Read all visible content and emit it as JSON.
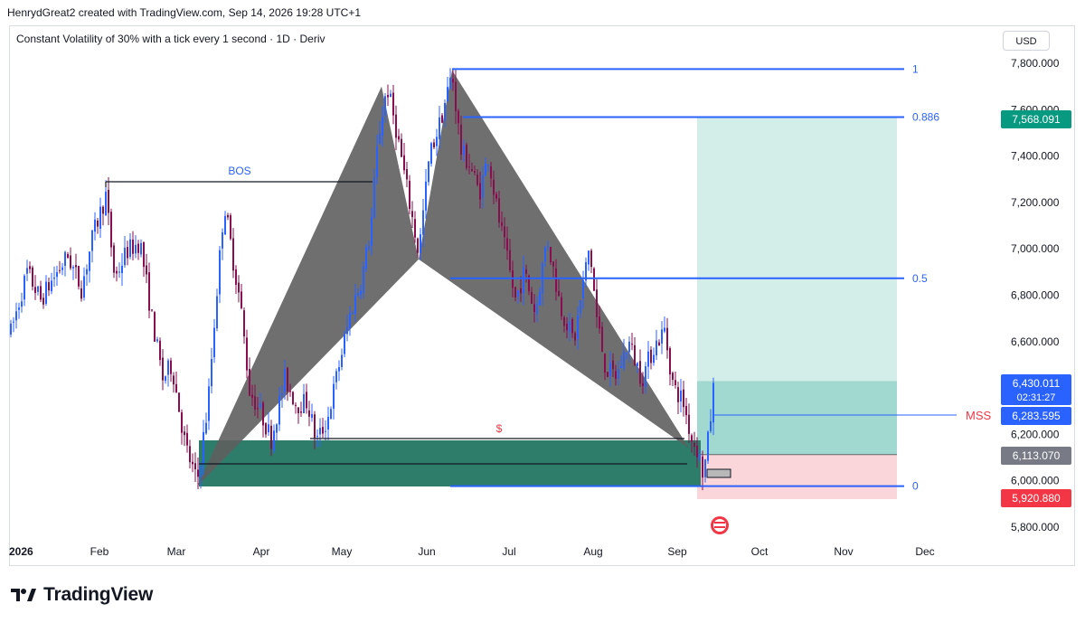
{
  "header": {
    "created_by": "HenrydGreat2 created with TradingView.com, Sep 14, 2026 19:28 UTC+1"
  },
  "symbol": {
    "title": "Constant Volatility of 30% with a tick every 1 second · 1D · Deriv"
  },
  "currency": "USD",
  "brand": {
    "name": "TradingView"
  },
  "chart_data": {
    "type": "candlestick",
    "x_axis_labels": [
      "2026",
      "Feb",
      "Mar",
      "Apr",
      "May",
      "Jun",
      "Jul",
      "Aug",
      "Sep",
      "Oct",
      "Nov",
      "Dec"
    ],
    "y_axis": {
      "min": 5720,
      "max": 7900,
      "ticks": [
        5800,
        6000,
        6200,
        6400,
        6600,
        6800,
        7000,
        7200,
        7400,
        7600,
        7800
      ]
    },
    "fib_levels": [
      {
        "label": "1",
        "price": 7775
      },
      {
        "label": "0.886",
        "price": 7568
      },
      {
        "label": "0.5",
        "price": 6873
      },
      {
        "label": "0",
        "price": 5977
      }
    ],
    "price_labels": [
      {
        "text": "7,568.091",
        "color": "#089981"
      },
      {
        "text": "6,430.011",
        "sub": "02:31:27",
        "color": "#2962ff"
      },
      {
        "text": "6,283.595",
        "color": "#2962ff"
      },
      {
        "text": "6,113.070",
        "color": "#787b86"
      },
      {
        "text": "5,920.880",
        "color": "#f23645"
      }
    ],
    "annotations": {
      "bos": "BOS",
      "mss": "MSS",
      "liquidity": "$"
    },
    "pattern_points": [
      {
        "x": "Mar 10",
        "y": 5975
      },
      {
        "x": "May 15",
        "y": 7700
      },
      {
        "x": "Jun 1",
        "y": 6955
      },
      {
        "x": "Jun 12",
        "y": 7770
      },
      {
        "x": "Sep 7",
        "y": 6140
      }
    ],
    "trade": {
      "entry": 6113,
      "target": 7568,
      "stop": 5921,
      "current": 6430
    },
    "colors": {
      "bull": "#2962ff",
      "bear": "#880e4f",
      "fib": "#2962ff",
      "pattern": "#5f5f5f",
      "profit": "#b2dfdb",
      "loss": "#f8c8cd",
      "demand": "#2e7d6b"
    }
  }
}
